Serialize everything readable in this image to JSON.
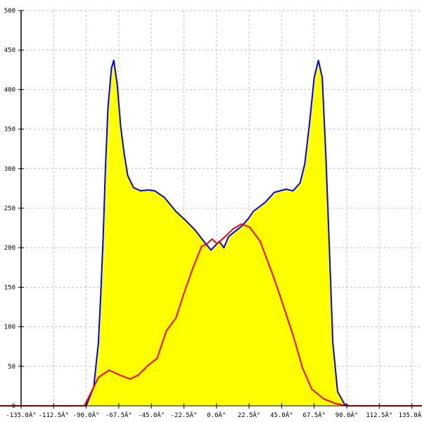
{
  "chart_data": {
    "type": "area",
    "title": "",
    "xlabel": "",
    "ylabel": "",
    "xlim": [
      -135,
      135
    ],
    "ylim": [
      0,
      500
    ],
    "grid": true,
    "x_ticks": [
      -135,
      -112.5,
      -90,
      -67.5,
      -45,
      -22.5,
      0,
      22.5,
      45,
      67.5,
      90,
      112.5,
      135
    ],
    "x_tick_labels": [
      "-135.0Â°",
      "-112.5Â°",
      "-90.0Â°",
      "-67.5Â°",
      "-45.0Â°",
      "-22.5Â°",
      "0.0Â°",
      "22.5Â°",
      "45.0Â°",
      "67.5Â°",
      "90.0Â°",
      "112.5Â°",
      "135.0Â°"
    ],
    "y_ticks": [
      0,
      50,
      100,
      150,
      200,
      250,
      300,
      350,
      400,
      450,
      500
    ],
    "y_tick_labels": [
      "0",
      "50",
      "100",
      "150",
      "200",
      "250",
      "300",
      "350",
      "400",
      "450",
      "500"
    ],
    "series": [
      {
        "style": "filled area",
        "color": "#0000ff",
        "fill": "#ffff00",
        "points": [
          [
            -135,
            0
          ],
          [
            -90,
            0
          ],
          [
            -84.8,
            24
          ],
          [
            -81.6,
            80
          ],
          [
            -80,
            140
          ],
          [
            -78.3,
            214
          ],
          [
            -76.7,
            303
          ],
          [
            -75,
            377
          ],
          [
            -72.6,
            427
          ],
          [
            -71,
            437
          ],
          [
            -68.6,
            407
          ],
          [
            -66.2,
            353
          ],
          [
            -63.7,
            318
          ],
          [
            -61.3,
            291
          ],
          [
            -57.3,
            276
          ],
          [
            -52.4,
            272
          ],
          [
            -47.5,
            273
          ],
          [
            -42.7,
            272
          ],
          [
            -36.2,
            264
          ],
          [
            -28.1,
            246
          ],
          [
            -21.6,
            235
          ],
          [
            -15.1,
            223
          ],
          [
            -8.7,
            208
          ],
          [
            -3.8,
            197
          ],
          [
            1.9,
            208
          ],
          [
            5.1,
            200
          ],
          [
            8.3,
            214
          ],
          [
            12.4,
            220
          ],
          [
            17.2,
            227
          ],
          [
            22.1,
            237
          ],
          [
            25.4,
            246
          ],
          [
            33.5,
            257
          ],
          [
            39.9,
            270
          ],
          [
            48,
            274
          ],
          [
            52.9,
            272
          ],
          [
            57.8,
            282
          ],
          [
            61,
            306
          ],
          [
            64.2,
            356
          ],
          [
            67.5,
            415
          ],
          [
            70.4,
            437
          ],
          [
            73.1,
            415
          ],
          [
            75.5,
            318
          ],
          [
            78,
            199
          ],
          [
            80.4,
            80
          ],
          [
            83.7,
            18
          ],
          [
            88.5,
            2
          ],
          [
            91.8,
            0
          ],
          [
            135,
            0
          ]
        ]
      },
      {
        "style": "line",
        "color": "#ff0000",
        "points": [
          [
            -135,
            0
          ],
          [
            -91.3,
            0
          ],
          [
            -86.4,
            18
          ],
          [
            -81.6,
            36
          ],
          [
            -74.3,
            45
          ],
          [
            -67,
            39
          ],
          [
            -59.7,
            34
          ],
          [
            -54,
            39
          ],
          [
            -47.5,
            51
          ],
          [
            -41.1,
            60
          ],
          [
            -34.6,
            95
          ],
          [
            -28.1,
            111
          ],
          [
            -22.4,
            143
          ],
          [
            -16.8,
            172
          ],
          [
            -10.3,
            202
          ],
          [
            -7.1,
            204
          ],
          [
            -3,
            211
          ],
          [
            0.4,
            205
          ],
          [
            5.9,
            214
          ],
          [
            11.6,
            224
          ],
          [
            17.2,
            230
          ],
          [
            22.9,
            226
          ],
          [
            30.2,
            208
          ],
          [
            35.1,
            184
          ],
          [
            40,
            160
          ],
          [
            44.8,
            134
          ],
          [
            52.9,
            89
          ],
          [
            59.4,
            48
          ],
          [
            65.8,
            21
          ],
          [
            73.9,
            9
          ],
          [
            82,
            3
          ],
          [
            90.1,
            0
          ],
          [
            135,
            0
          ]
        ]
      }
    ]
  }
}
